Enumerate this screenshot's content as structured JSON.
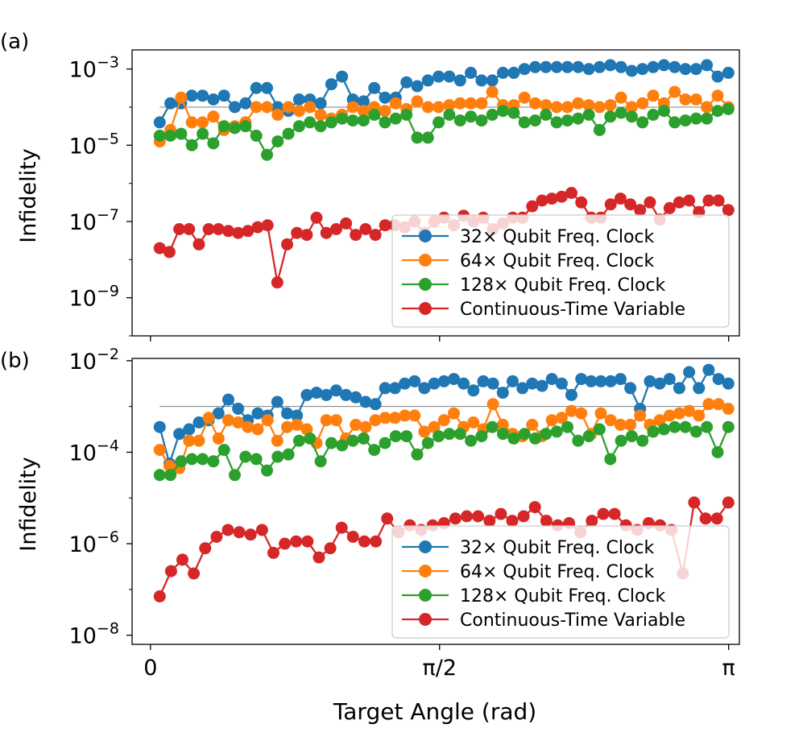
{
  "chart_data": [
    {
      "type": "line",
      "panel_label": "(a)",
      "ylabel": "Infidelity",
      "xlabel": "",
      "yscale": "log",
      "ylim_exp": [
        -10.0,
        -2.5
      ],
      "xlim": [
        -0.1,
        3.2
      ],
      "y_ticks": [
        {
          "exp": -3,
          "base": "10",
          "sup": "−3"
        },
        {
          "exp": -5,
          "base": "10",
          "sup": "−5"
        },
        {
          "exp": -7,
          "base": "10",
          "sup": "−7"
        },
        {
          "exp": -9,
          "base": "10",
          "sup": "−9"
        }
      ],
      "x_ticks": [
        {
          "value": 0,
          "label": ""
        },
        {
          "value": 1.5708,
          "label": ""
        },
        {
          "value": 3.1416,
          "label": ""
        }
      ],
      "reference_line_exp": -4.0,
      "legend": {
        "position": "lower-right",
        "entries": [
          "32× Qubit Freq. Clock",
          "64× Qubit Freq. Clock",
          "128× Qubit Freq. Clock",
          "Continuous-Time Variable"
        ]
      },
      "series": [
        {
          "name": "32× Qubit Freq. Clock",
          "color": "#1f77b4",
          "log10_values": [
            -4.4,
            -3.9,
            -3.9,
            -3.7,
            -3.7,
            -3.8,
            -3.7,
            -4.0,
            -3.9,
            -3.5,
            -3.5,
            -4.0,
            -4.1,
            -3.8,
            -3.8,
            -3.9,
            -3.4,
            -3.2,
            -3.8,
            -3.85,
            -3.5,
            -3.75,
            -3.75,
            -3.35,
            -3.45,
            -3.3,
            -3.2,
            -3.2,
            -3.3,
            -3.1,
            -3.3,
            -3.3,
            -3.1,
            -3.1,
            -3.0,
            -2.95,
            -2.95,
            -2.95,
            -2.95,
            -2.95,
            -3.0,
            -2.95,
            -2.9,
            -2.95,
            -3.05,
            -3.0,
            -2.95,
            -2.9,
            -2.95,
            -3.0,
            -3.0,
            -2.9,
            -3.2,
            -3.1
          ]
        },
        {
          "name": "64× Qubit Freq. Clock",
          "color": "#ff7f0e",
          "log10_values": [
            -4.9,
            -4.6,
            -3.75,
            -4.4,
            -4.4,
            -4.25,
            -4.6,
            -4.5,
            -4.4,
            -4.0,
            -4.0,
            -4.2,
            -4.0,
            -4.1,
            -4.0,
            -4.2,
            -4.3,
            -4.2,
            -4.0,
            -4.1,
            -4.0,
            -4.1,
            -3.9,
            -4.05,
            -3.85,
            -4.0,
            -4.0,
            -3.95,
            -3.9,
            -3.9,
            -3.9,
            -3.6,
            -3.95,
            -3.95,
            -3.75,
            -3.9,
            -3.95,
            -4.0,
            -4.0,
            -3.9,
            -3.95,
            -4.0,
            -3.95,
            -3.75,
            -4.0,
            -3.9,
            -3.7,
            -3.9,
            -3.6,
            -3.8,
            -3.8,
            -4.0,
            -3.7,
            -4.0
          ]
        },
        {
          "name": "128× Qubit Freq. Clock",
          "color": "#2ca02c",
          "log10_values": [
            -4.75,
            -4.75,
            -4.7,
            -5.0,
            -4.7,
            -4.95,
            -4.5,
            -4.55,
            -4.5,
            -4.75,
            -5.25,
            -4.9,
            -4.7,
            -4.5,
            -4.4,
            -4.5,
            -4.4,
            -4.3,
            -4.35,
            -4.35,
            -4.2,
            -4.4,
            -4.3,
            -4.2,
            -4.8,
            -4.8,
            -4.4,
            -4.2,
            -4.35,
            -4.25,
            -4.35,
            -4.2,
            -4.1,
            -4.15,
            -4.4,
            -4.35,
            -4.2,
            -4.4,
            -4.35,
            -4.3,
            -4.2,
            -4.6,
            -4.25,
            -4.15,
            -4.25,
            -4.4,
            -4.2,
            -4.1,
            -4.4,
            -4.35,
            -4.3,
            -4.3,
            -4.1,
            -4.05
          ]
        },
        {
          "name": "Continuous-Time Variable",
          "color": "#d62728",
          "log10_values": [
            -7.7,
            -7.8,
            -7.2,
            -7.2,
            -7.6,
            -7.2,
            -7.2,
            -7.25,
            -7.3,
            -7.25,
            -7.15,
            -7.1,
            -8.6,
            -7.6,
            -7.3,
            -7.35,
            -6.9,
            -7.3,
            -7.2,
            -7.05,
            -7.35,
            -7.2,
            -7.35,
            -7.1,
            -7.1,
            -7.15,
            -7.0,
            -7.3,
            -7.0,
            -6.9,
            -7.1,
            -6.85,
            -7.0,
            -6.9,
            -7.2,
            -7.05,
            -6.9,
            -6.9,
            -6.6,
            -6.45,
            -6.4,
            -6.35,
            -6.25,
            -6.5,
            -6.9,
            -6.9,
            -6.55,
            -6.4,
            -6.55,
            -6.7,
            -6.5,
            -6.95,
            -6.65,
            -6.5,
            -6.45,
            -6.75,
            -6.45,
            -6.45,
            -6.7
          ]
        }
      ]
    },
    {
      "type": "line",
      "panel_label": "(b)",
      "ylabel": "Infidelity",
      "xlabel": "Target Angle (rad)",
      "yscale": "log",
      "ylim_exp": [
        -8.2,
        -1.95
      ],
      "xlim": [
        -0.1,
        3.2
      ],
      "y_ticks": [
        {
          "exp": -2,
          "base": "10",
          "sup": "−2"
        },
        {
          "exp": -4,
          "base": "10",
          "sup": "−4"
        },
        {
          "exp": -6,
          "base": "10",
          "sup": "−6"
        },
        {
          "exp": -8,
          "base": "10",
          "sup": "−8"
        }
      ],
      "x_ticks": [
        {
          "value": 0,
          "label": "0"
        },
        {
          "value": 1.5708,
          "label": "π/2"
        },
        {
          "value": 3.1416,
          "label": "π"
        }
      ],
      "reference_line_exp": -3.0,
      "legend": {
        "position": "lower-right",
        "entries": [
          "32× Qubit Freq. Clock",
          "64× Qubit Freq. Clock",
          "128× Qubit Freq. Clock",
          "Continuous-Time Variable"
        ]
      },
      "series": [
        {
          "name": "32× Qubit Freq. Clock",
          "color": "#1f77b4",
          "log10_values": [
            -3.45,
            -4.25,
            -3.6,
            -3.5,
            -3.35,
            -3.3,
            -3.15,
            -2.85,
            -3.05,
            -3.3,
            -3.15,
            -3.2,
            -2.9,
            -3.15,
            -3.2,
            -2.75,
            -2.7,
            -2.75,
            -2.65,
            -2.75,
            -2.8,
            -2.9,
            -2.95,
            -2.6,
            -2.6,
            -2.5,
            -2.45,
            -2.6,
            -2.5,
            -2.45,
            -2.4,
            -2.5,
            -2.65,
            -2.45,
            -2.5,
            -2.7,
            -2.45,
            -2.6,
            -2.5,
            -2.55,
            -2.4,
            -2.5,
            -2.75,
            -2.4,
            -2.45,
            -2.45,
            -2.45,
            -2.4,
            -2.6,
            -3.05,
            -2.45,
            -2.5,
            -2.4,
            -2.6,
            -2.25,
            -2.6,
            -2.2,
            -2.4,
            -2.5
          ]
        },
        {
          "name": "64× Qubit Freq. Clock",
          "color": "#ff7f0e",
          "log10_values": [
            -3.95,
            -4.3,
            -4.35,
            -3.75,
            -3.75,
            -3.25,
            -3.7,
            -3.3,
            -3.35,
            -3.45,
            -3.5,
            -3.3,
            -3.75,
            -3.45,
            -3.4,
            -3.5,
            -3.8,
            -3.3,
            -3.3,
            -3.7,
            -3.4,
            -3.45,
            -3.3,
            -3.25,
            -3.25,
            -3.2,
            -3.2,
            -3.55,
            -3.45,
            -3.3,
            -3.15,
            -3.45,
            -3.35,
            -3.5,
            -2.95,
            -3.4,
            -3.6,
            -3.65,
            -3.4,
            -3.65,
            -3.3,
            -3.25,
            -3.1,
            -3.15,
            -3.6,
            -3.15,
            -3.3,
            -3.4,
            -3.4,
            -3.2,
            -3.4,
            -3.3,
            -3.2,
            -3.15,
            -3.1,
            -3.2,
            -2.95,
            -2.95,
            -3.05
          ]
        },
        {
          "name": "128× Qubit Freq. Clock",
          "color": "#2ca02c",
          "log10_values": [
            -4.5,
            -4.5,
            -4.2,
            -4.15,
            -4.15,
            -4.2,
            -3.95,
            -4.5,
            -4.1,
            -4.15,
            -4.4,
            -4.1,
            -4.05,
            -3.75,
            -3.7,
            -4.2,
            -3.8,
            -3.85,
            -3.75,
            -3.7,
            -3.95,
            -3.8,
            -3.65,
            -3.65,
            -4.05,
            -3.8,
            -3.65,
            -3.6,
            -3.6,
            -3.75,
            -3.65,
            -3.45,
            -3.6,
            -3.7,
            -3.6,
            -3.7,
            -3.6,
            -3.55,
            -3.45,
            -3.75,
            -3.65,
            -3.5,
            -4.15,
            -3.75,
            -3.65,
            -3.75,
            -3.55,
            -3.5,
            -3.45,
            -3.45,
            -3.55,
            -3.45,
            -4.0,
            -3.45
          ]
        },
        {
          "name": "Continuous-Time Variable",
          "color": "#d62728",
          "log10_values": [
            -7.15,
            -6.6,
            -6.35,
            -6.65,
            -6.1,
            -5.85,
            -5.7,
            -5.75,
            -5.8,
            -5.7,
            -6.2,
            -6.0,
            -5.95,
            -5.95,
            -6.3,
            -6.1,
            -5.65,
            -5.85,
            -5.95,
            -5.95,
            -5.45,
            -5.75,
            -5.6,
            -5.7,
            -5.6,
            -5.55,
            -5.45,
            -5.4,
            -5.4,
            -5.5,
            -5.35,
            -5.5,
            -5.4,
            -5.2,
            -5.5,
            -5.6,
            -5.55,
            -5.75,
            -5.5,
            -5.35,
            -5.35,
            -5.6,
            -5.7,
            -5.55,
            -5.6,
            -5.7,
            -6.65,
            -5.1,
            -5.45,
            -5.45,
            -5.1
          ]
        }
      ]
    }
  ]
}
